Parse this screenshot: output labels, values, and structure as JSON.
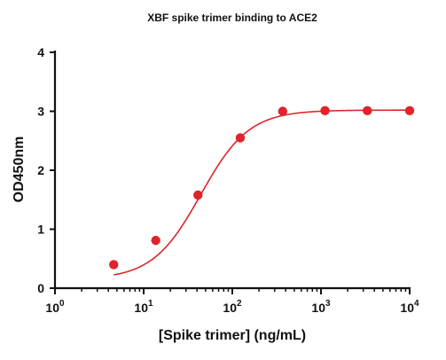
{
  "chart_data": {
    "type": "scatter",
    "title": "XBF spike trimer binding to ACE2",
    "xlabel": "[Spike trimer] (ng/mL)",
    "ylabel": "OD450nm",
    "x_scale": "log",
    "xlim": [
      1,
      10000
    ],
    "ylim": [
      0,
      4
    ],
    "x_ticks": [
      {
        "base": "10",
        "exp": "0"
      },
      {
        "base": "10",
        "exp": "1"
      },
      {
        "base": "10",
        "exp": "2"
      },
      {
        "base": "10",
        "exp": "3"
      },
      {
        "base": "10",
        "exp": "4"
      }
    ],
    "y_ticks": [
      "0",
      "1",
      "2",
      "3",
      "4"
    ],
    "grid": false,
    "series": [
      {
        "color": "#e0242b",
        "points": [
          {
            "x": 4.6,
            "y": 0.4
          },
          {
            "x": 13.7,
            "y": 0.81
          },
          {
            "x": 41,
            "y": 1.58
          },
          {
            "x": 123,
            "y": 2.55
          },
          {
            "x": 370,
            "y": 3.0
          },
          {
            "x": 1111,
            "y": 3.01
          },
          {
            "x": 3333,
            "y": 3.01
          },
          {
            "x": 10000,
            "y": 3.01
          }
        ],
        "fit": {
          "bottom": 0.15,
          "top": 3.02,
          "ec50": 44,
          "hill": 1.6
        }
      }
    ]
  }
}
